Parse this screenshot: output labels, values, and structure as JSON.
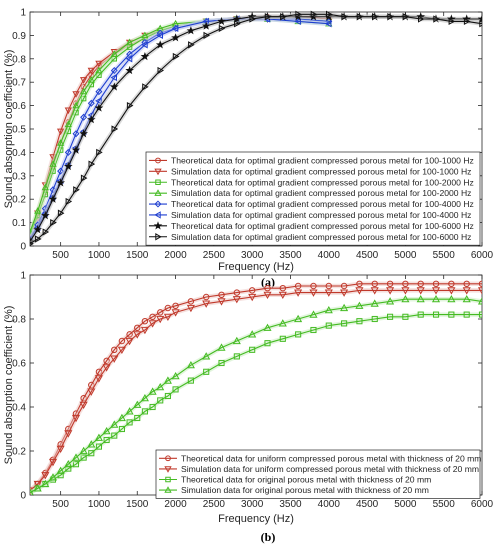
{
  "chart_data": [
    {
      "panel": "(a)",
      "type": "line",
      "xlabel": "Frequency (Hz)",
      "ylabel": "Sound absorption coefficient (%)",
      "xlim": [
        100,
        6000
      ],
      "ylim": [
        0,
        1
      ],
      "xticks": [
        500,
        1000,
        1500,
        2000,
        2500,
        3000,
        3500,
        4000,
        4500,
        5000,
        5500,
        6000
      ],
      "yticks": [
        0,
        0.1,
        0.2,
        0.3,
        0.4,
        0.5,
        0.6,
        0.7,
        0.8,
        0.9,
        1
      ],
      "grid": false,
      "legend_position": "bottom-right",
      "series": [
        {
          "name": "Theoretical data for optimal gradient compressed porous metal for 100-1000 Hz",
          "color": "#c0392b",
          "marker": "circle",
          "x": [
            100,
            200,
            300,
            400,
            500,
            600,
            700,
            800,
            900,
            1000,
            1200,
            1400,
            1600,
            1800,
            2000,
            2400,
            2800,
            3200,
            3600,
            4000
          ],
          "y": [
            0.04,
            0.12,
            0.23,
            0.34,
            0.44,
            0.53,
            0.61,
            0.68,
            0.73,
            0.77,
            0.82,
            0.86,
            0.89,
            0.92,
            0.94,
            0.96,
            0.97,
            0.98,
            0.98,
            0.97
          ]
        },
        {
          "name": "Simulation data for optimal gradient compressed porous metal for 100-1000 Hz",
          "color": "#c0392b",
          "marker": "triangle-down",
          "x": [
            100,
            200,
            300,
            400,
            500,
            600,
            700,
            800,
            900,
            1000,
            1200,
            1400,
            1600,
            1800,
            2000,
            2400,
            2800,
            3200,
            3600,
            4000
          ],
          "y": [
            0.05,
            0.14,
            0.26,
            0.38,
            0.49,
            0.58,
            0.65,
            0.71,
            0.75,
            0.78,
            0.83,
            0.87,
            0.9,
            0.92,
            0.94,
            0.96,
            0.97,
            0.97,
            0.97,
            0.96
          ]
        },
        {
          "name": "Theoretical data for optimal gradient compressed porous metal for 100-2000 Hz",
          "color": "#44bb22",
          "marker": "square",
          "x": [
            100,
            200,
            300,
            400,
            500,
            600,
            700,
            800,
            900,
            1000,
            1200,
            1400,
            1600,
            1800,
            2000,
            2400,
            2800,
            3200,
            3600,
            4000
          ],
          "y": [
            0.05,
            0.13,
            0.22,
            0.32,
            0.41,
            0.49,
            0.57,
            0.63,
            0.69,
            0.73,
            0.8,
            0.85,
            0.89,
            0.92,
            0.94,
            0.96,
            0.97,
            0.97,
            0.97,
            0.96
          ]
        },
        {
          "name": "Simulation data for optimal gradient compressed porous metal for 100-2000 Hz",
          "color": "#44bb22",
          "marker": "triangle-up",
          "x": [
            100,
            200,
            300,
            400,
            500,
            600,
            700,
            800,
            900,
            1000,
            1200,
            1400,
            1600,
            1800,
            2000,
            2400,
            2800,
            3200,
            3600,
            4000
          ],
          "y": [
            0.06,
            0.15,
            0.25,
            0.35,
            0.44,
            0.52,
            0.6,
            0.66,
            0.71,
            0.75,
            0.82,
            0.87,
            0.9,
            0.93,
            0.95,
            0.96,
            0.97,
            0.97,
            0.96,
            0.95
          ]
        },
        {
          "name": "Theoretical data for optimal gradient compressed porous metal for 100-4000 Hz",
          "color": "#1f3fd0",
          "marker": "diamond",
          "x": [
            100,
            200,
            300,
            400,
            500,
            600,
            700,
            800,
            900,
            1000,
            1200,
            1400,
            1600,
            1800,
            2000,
            2400,
            2800,
            3200,
            3600,
            4000
          ],
          "y": [
            0.03,
            0.09,
            0.16,
            0.24,
            0.32,
            0.4,
            0.48,
            0.55,
            0.61,
            0.66,
            0.75,
            0.82,
            0.87,
            0.91,
            0.93,
            0.96,
            0.97,
            0.97,
            0.97,
            0.96
          ]
        },
        {
          "name": "Simulation data for optimal gradient compressed porous metal for 100-4000 Hz",
          "color": "#1f3fd0",
          "marker": "triangle-left",
          "x": [
            100,
            200,
            300,
            400,
            500,
            600,
            700,
            800,
            900,
            1000,
            1200,
            1400,
            1600,
            1800,
            2000,
            2400,
            2800,
            3200,
            3600,
            4000
          ],
          "y": [
            0.03,
            0.08,
            0.14,
            0.21,
            0.28,
            0.35,
            0.42,
            0.49,
            0.56,
            0.62,
            0.72,
            0.8,
            0.86,
            0.9,
            0.93,
            0.96,
            0.97,
            0.97,
            0.96,
            0.95
          ]
        },
        {
          "name": "Theoretical data for optimal gradient compressed porous metal for 100-6000 Hz",
          "color": "#111111",
          "marker": "star",
          "x": [
            100,
            200,
            300,
            400,
            500,
            600,
            700,
            800,
            900,
            1000,
            1200,
            1400,
            1600,
            1800,
            2000,
            2200,
            2400,
            2600,
            2800,
            3000,
            3200,
            3400,
            3600,
            3800,
            4000,
            4200,
            4400,
            4600,
            4800,
            5000,
            5200,
            5400,
            5600,
            5800,
            6000
          ],
          "y": [
            0.02,
            0.07,
            0.13,
            0.2,
            0.27,
            0.34,
            0.41,
            0.48,
            0.54,
            0.59,
            0.68,
            0.75,
            0.81,
            0.86,
            0.89,
            0.92,
            0.94,
            0.96,
            0.97,
            0.98,
            0.98,
            0.98,
            0.98,
            0.98,
            0.98,
            0.98,
            0.98,
            0.98,
            0.98,
            0.98,
            0.98,
            0.97,
            0.97,
            0.97,
            0.97
          ]
        },
        {
          "name": "Simulation data for optimal gradient compressed porous metal for 100-6000 Hz",
          "color": "#111111",
          "marker": "triangle-right",
          "x": [
            100,
            200,
            300,
            400,
            500,
            600,
            700,
            800,
            900,
            1000,
            1200,
            1400,
            1600,
            1800,
            2000,
            2200,
            2400,
            2600,
            2800,
            3000,
            3200,
            3400,
            3600,
            3800,
            4000,
            4200,
            4400,
            4600,
            4800,
            5000,
            5200,
            5400,
            5600,
            5800,
            6000
          ],
          "y": [
            0.01,
            0.03,
            0.06,
            0.1,
            0.14,
            0.19,
            0.24,
            0.29,
            0.35,
            0.4,
            0.5,
            0.6,
            0.68,
            0.75,
            0.81,
            0.86,
            0.9,
            0.93,
            0.95,
            0.97,
            0.98,
            0.98,
            0.99,
            0.99,
            0.99,
            0.98,
            0.98,
            0.98,
            0.98,
            0.98,
            0.97,
            0.97,
            0.96,
            0.96,
            0.95
          ]
        }
      ]
    },
    {
      "panel": "(b)",
      "type": "line",
      "xlabel": "Frequency (Hz)",
      "ylabel": "Sound absorption coefficient (%)",
      "xlim": [
        100,
        6000
      ],
      "ylim": [
        0,
        1
      ],
      "xticks": [
        500,
        1000,
        1500,
        2000,
        2500,
        3000,
        3500,
        4000,
        4500,
        5000,
        5500,
        6000
      ],
      "yticks": [
        0,
        0.2,
        0.4,
        0.6,
        0.8,
        1
      ],
      "grid": false,
      "legend_position": "bottom-right",
      "series": [
        {
          "name": "Theoretical data for uniform compressed porous metal with thickness of 20 mm",
          "color": "#c0392b",
          "marker": "circle",
          "x": [
            100,
            200,
            300,
            400,
            500,
            600,
            700,
            800,
            900,
            1000,
            1100,
            1200,
            1300,
            1400,
            1500,
            1600,
            1700,
            1800,
            1900,
            2000,
            2200,
            2400,
            2600,
            2800,
            3000,
            3200,
            3400,
            3600,
            3800,
            4000,
            4200,
            4400,
            4600,
            4800,
            5000,
            5200,
            5400,
            5600,
            5800,
            6000
          ],
          "y": [
            0.02,
            0.05,
            0.1,
            0.16,
            0.23,
            0.3,
            0.37,
            0.44,
            0.5,
            0.56,
            0.61,
            0.66,
            0.7,
            0.73,
            0.76,
            0.79,
            0.81,
            0.83,
            0.85,
            0.86,
            0.88,
            0.9,
            0.91,
            0.92,
            0.93,
            0.94,
            0.94,
            0.95,
            0.95,
            0.95,
            0.95,
            0.96,
            0.96,
            0.96,
            0.96,
            0.96,
            0.96,
            0.96,
            0.96,
            0.96
          ]
        },
        {
          "name": "Simulation data for uniform compressed porous metal with thickness of 20 mm",
          "color": "#c0392b",
          "marker": "triangle-down",
          "x": [
            100,
            200,
            300,
            400,
            500,
            600,
            700,
            800,
            900,
            1000,
            1100,
            1200,
            1300,
            1400,
            1500,
            1600,
            1700,
            1800,
            1900,
            2000,
            2200,
            2400,
            2600,
            2800,
            3000,
            3200,
            3400,
            3600,
            3800,
            4000,
            4200,
            4400,
            4600,
            4800,
            5000,
            5200,
            5400,
            5600,
            5800,
            6000
          ],
          "y": [
            0.02,
            0.05,
            0.09,
            0.15,
            0.21,
            0.28,
            0.35,
            0.41,
            0.47,
            0.53,
            0.58,
            0.62,
            0.66,
            0.7,
            0.73,
            0.75,
            0.78,
            0.8,
            0.81,
            0.83,
            0.85,
            0.87,
            0.88,
            0.89,
            0.9,
            0.91,
            0.91,
            0.92,
            0.92,
            0.92,
            0.92,
            0.93,
            0.93,
            0.93,
            0.93,
            0.93,
            0.93,
            0.93,
            0.93,
            0.93
          ]
        },
        {
          "name": "Theoretical data for original porous metal with thickness of 20 mm",
          "color": "#44bb22",
          "marker": "square",
          "x": [
            100,
            200,
            300,
            400,
            500,
            600,
            700,
            800,
            900,
            1000,
            1100,
            1200,
            1300,
            1400,
            1500,
            1600,
            1700,
            1800,
            1900,
            2000,
            2200,
            2400,
            2600,
            2800,
            3000,
            3200,
            3400,
            3600,
            3800,
            4000,
            4200,
            4400,
            4600,
            4800,
            5000,
            5200,
            5400,
            5600,
            5800,
            6000
          ],
          "y": [
            0.01,
            0.03,
            0.05,
            0.07,
            0.09,
            0.12,
            0.14,
            0.17,
            0.19,
            0.22,
            0.25,
            0.27,
            0.3,
            0.33,
            0.35,
            0.38,
            0.4,
            0.43,
            0.45,
            0.48,
            0.52,
            0.56,
            0.6,
            0.63,
            0.66,
            0.69,
            0.71,
            0.73,
            0.75,
            0.77,
            0.78,
            0.79,
            0.8,
            0.81,
            0.81,
            0.82,
            0.82,
            0.82,
            0.82,
            0.82
          ]
        },
        {
          "name": "Simulation data for original porous metal with thickness of 20 mm",
          "color": "#44bb22",
          "marker": "triangle-up",
          "x": [
            100,
            200,
            300,
            400,
            500,
            600,
            700,
            800,
            900,
            1000,
            1100,
            1200,
            1300,
            1400,
            1500,
            1600,
            1700,
            1800,
            1900,
            2000,
            2200,
            2400,
            2600,
            2800,
            3000,
            3200,
            3400,
            3600,
            3800,
            4000,
            4200,
            4400,
            4600,
            4800,
            5000,
            5200,
            5400,
            5600,
            5800,
            6000
          ],
          "y": [
            0.01,
            0.03,
            0.05,
            0.08,
            0.11,
            0.14,
            0.17,
            0.2,
            0.23,
            0.26,
            0.29,
            0.32,
            0.35,
            0.38,
            0.41,
            0.44,
            0.47,
            0.49,
            0.52,
            0.54,
            0.59,
            0.63,
            0.67,
            0.7,
            0.73,
            0.76,
            0.78,
            0.8,
            0.82,
            0.84,
            0.85,
            0.86,
            0.87,
            0.88,
            0.89,
            0.89,
            0.89,
            0.89,
            0.89,
            0.88
          ]
        }
      ]
    }
  ]
}
